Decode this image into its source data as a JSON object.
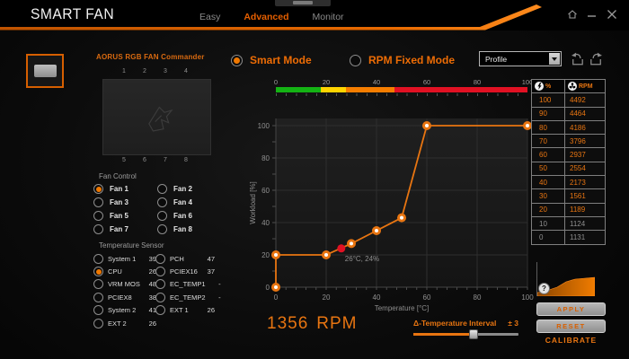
{
  "colors": {
    "accent": "#e87511",
    "selected_radio": "#f07800",
    "current_point_red": "#e11123",
    "disabled_text": "#8f8f8f",
    "scale_green": "#14b314",
    "scale_yellow": "#ffd400",
    "scale_orange": "#f57d00",
    "scale_red": "#e11123"
  },
  "header": {
    "title": "SMART FAN",
    "tabs": [
      {
        "label": "Easy",
        "active": false
      },
      {
        "label": "Advanced",
        "active": true
      },
      {
        "label": "Monitor",
        "active": false
      }
    ],
    "window_controls": [
      "home-icon",
      "minimize-icon",
      "close-icon"
    ]
  },
  "device": {
    "name": "AORUS RGB FAN Commander",
    "ports_top": [
      "1",
      "2",
      "3",
      "4"
    ],
    "ports_bottom": [
      "5",
      "6",
      "7",
      "8"
    ]
  },
  "fan_control": {
    "label": "Fan Control",
    "fans": [
      {
        "label": "Fan 1",
        "selected": true
      },
      {
        "label": "Fan 2",
        "selected": false
      },
      {
        "label": "Fan 3",
        "selected": false
      },
      {
        "label": "Fan 4",
        "selected": false
      },
      {
        "label": "Fan 5",
        "selected": false
      },
      {
        "label": "Fan 6",
        "selected": false
      },
      {
        "label": "Fan 7",
        "selected": false
      },
      {
        "label": "Fan 8",
        "selected": false
      }
    ]
  },
  "temperature_sensor": {
    "label": "Temperature Sensor",
    "columns": [
      [
        {
          "name": "System 1",
          "value": "39",
          "selected": false
        },
        {
          "name": "CPU",
          "value": "26",
          "selected": true
        },
        {
          "name": "VRM MOS",
          "value": "48",
          "selected": false
        },
        {
          "name": "PCIEX8",
          "value": "38",
          "selected": false
        },
        {
          "name": "System 2",
          "value": "41",
          "selected": false
        },
        {
          "name": "EXT 2",
          "value": "26",
          "selected": false
        }
      ],
      [
        {
          "name": "PCH",
          "value": "47",
          "selected": false
        },
        {
          "name": "PCIEX16",
          "value": "37",
          "selected": false
        },
        {
          "name": "EC_TEMP1",
          "value": "-",
          "selected": false
        },
        {
          "name": "EC_TEMP2",
          "value": "-",
          "selected": false
        },
        {
          "name": "EXT 1",
          "value": "26",
          "selected": false
        }
      ]
    ]
  },
  "modes": {
    "smart": {
      "label": "Smart Mode",
      "selected": true
    },
    "rpm_fixed": {
      "label": "RPM Fixed Mode",
      "selected": false
    }
  },
  "profile": {
    "value": "Profile"
  },
  "chart_data": {
    "type": "line",
    "title": "",
    "xlabel": "Temperature [°C]",
    "ylabel": "Workload [%]",
    "xlim": [
      0,
      100
    ],
    "ylim": [
      0,
      100
    ],
    "xticks": [
      0,
      20,
      40,
      60,
      80,
      100
    ],
    "yticks": [
      0,
      20,
      40,
      60,
      80,
      100
    ],
    "grid": true,
    "legend": false,
    "series": [
      {
        "name": "fan-curve",
        "color": "#e87511",
        "x": [
          0,
          0,
          20,
          30,
          40,
          50,
          60,
          100
        ],
        "y": [
          0,
          20,
          20,
          27,
          35,
          43,
          100,
          100
        ]
      }
    ],
    "current_point": {
      "x": 26,
      "y": 24,
      "label": "26°C, 24%",
      "color": "#e11123"
    },
    "temp_color_bar": {
      "ticks": [
        "0",
        "20",
        "40",
        "60",
        "80",
        "100"
      ],
      "segments": [
        {
          "color": "#14b314",
          "from": 0,
          "to": 18
        },
        {
          "color": "#ffd400",
          "from": 18,
          "to": 28
        },
        {
          "color": "#f57d00",
          "from": 28,
          "to": 47
        },
        {
          "color": "#e11123",
          "from": 47,
          "to": 100
        }
      ]
    }
  },
  "status": {
    "rpm_value": "1356",
    "rpm_unit": "RPM"
  },
  "interval": {
    "label": "Δ-Temperature Interval",
    "value": "± 3",
    "slider_percent": 57
  },
  "rpm_table": {
    "headers": [
      {
        "icon": "lightning-icon",
        "label": "%"
      },
      {
        "icon": "fan-icon",
        "label": "RPM"
      }
    ],
    "rows": [
      {
        "pct": "100",
        "rpm": "4492",
        "enabled": true
      },
      {
        "pct": "90",
        "rpm": "4464",
        "enabled": true
      },
      {
        "pct": "80",
        "rpm": "4186",
        "enabled": true
      },
      {
        "pct": "70",
        "rpm": "3796",
        "enabled": true
      },
      {
        "pct": "60",
        "rpm": "2937",
        "enabled": true
      },
      {
        "pct": "50",
        "rpm": "2554",
        "enabled": true
      },
      {
        "pct": "40",
        "rpm": "2173",
        "enabled": true
      },
      {
        "pct": "30",
        "rpm": "1561",
        "enabled": true
      },
      {
        "pct": "20",
        "rpm": "1189",
        "enabled": true
      },
      {
        "pct": "10",
        "rpm": "1124",
        "enabled": false
      },
      {
        "pct": "0",
        "rpm": "1131",
        "enabled": false
      }
    ]
  },
  "calibration": {
    "help": "?",
    "apply_label": "APPLY",
    "reset_label": "RESET",
    "calibrate_label": "CALIBRATE"
  }
}
